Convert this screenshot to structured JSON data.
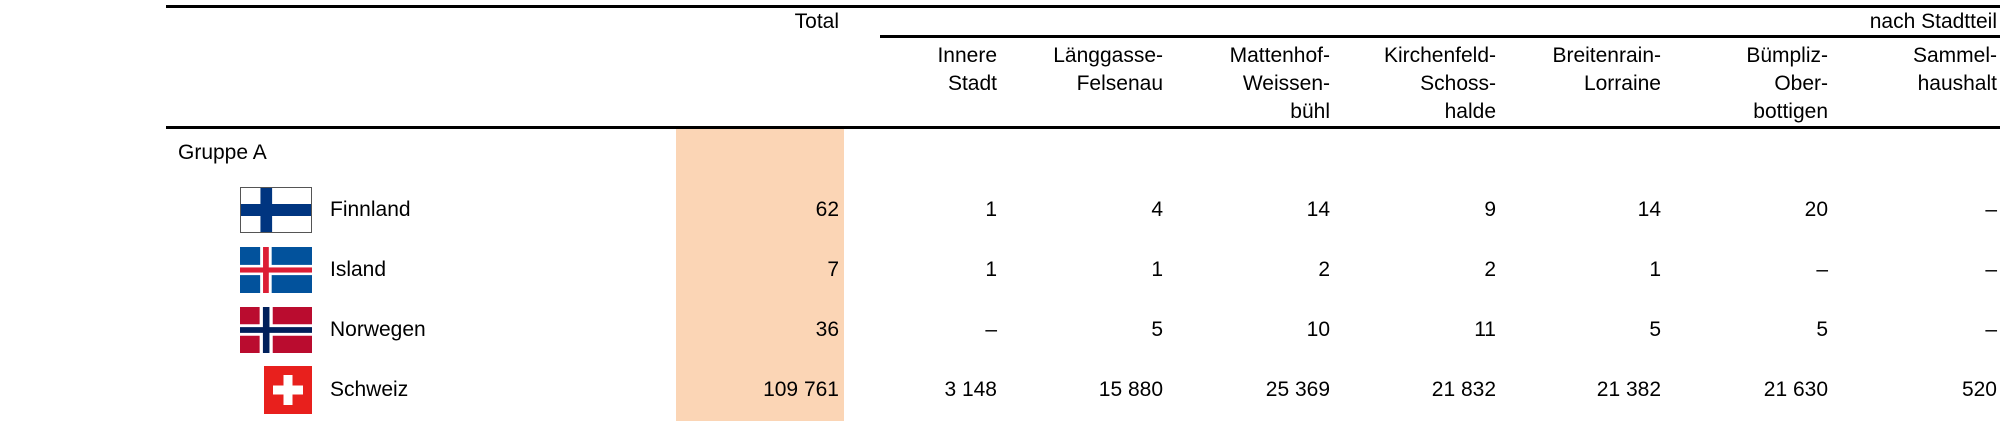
{
  "header": {
    "total": "Total",
    "group_label": "nach Stadtteil",
    "columns": [
      "Innere\nStadt",
      "Länggasse-\nFelsenau",
      "Mattenhof-\nWeissen-\nbühl",
      "Kirchenfeld-\nSchoss-\nhalde",
      "Breitenrain-\nLorraine",
      "Bümpliz-\nOber-\nbottigen",
      "Sammel-\nhaushalt"
    ]
  },
  "group": "Gruppe A",
  "highlight_color": "#fbd5b5",
  "rows": [
    {
      "country": "Finnland",
      "flag": "finland-flag",
      "total": "62",
      "values": [
        "1",
        "4",
        "14",
        "9",
        "14",
        "20",
        "–"
      ]
    },
    {
      "country": "Island",
      "flag": "iceland-flag",
      "total": "7",
      "values": [
        "1",
        "1",
        "2",
        "2",
        "1",
        "–",
        "–"
      ]
    },
    {
      "country": "Norwegen",
      "flag": "norway-flag",
      "total": "36",
      "values": [
        "–",
        "5",
        "10",
        "11",
        "5",
        "5",
        "–"
      ]
    },
    {
      "country": "Schweiz",
      "flag": "switzerland-flag",
      "total": "109 761",
      "values": [
        "3 148",
        "15 880",
        "25 369",
        "21 832",
        "21 382",
        "21 630",
        "520"
      ]
    }
  ]
}
